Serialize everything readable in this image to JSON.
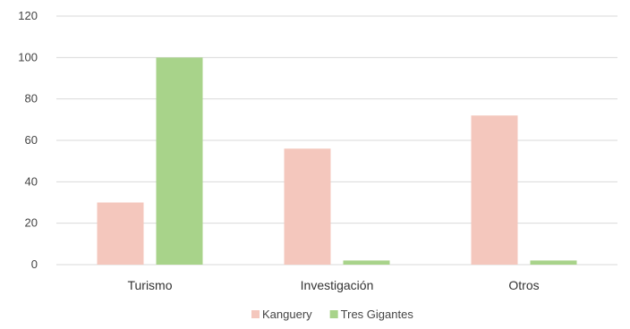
{
  "chart_data": {
    "type": "bar",
    "categories": [
      "Turismo",
      "Investigación",
      "Otros"
    ],
    "series": [
      {
        "name": "Kanguery",
        "values": [
          30,
          56,
          72
        ],
        "color": "#f4c7bd"
      },
      {
        "name": "Tres Gigantes",
        "values": [
          100,
          2,
          2
        ],
        "color": "#a8d38a"
      }
    ],
    "ylim": [
      0,
      120
    ],
    "yticks": [
      "0",
      "20",
      "40",
      "60",
      "80",
      "100",
      "120"
    ],
    "grid": true,
    "legend_position": "bottom-center",
    "title": "",
    "xlabel": "",
    "ylabel": ""
  }
}
